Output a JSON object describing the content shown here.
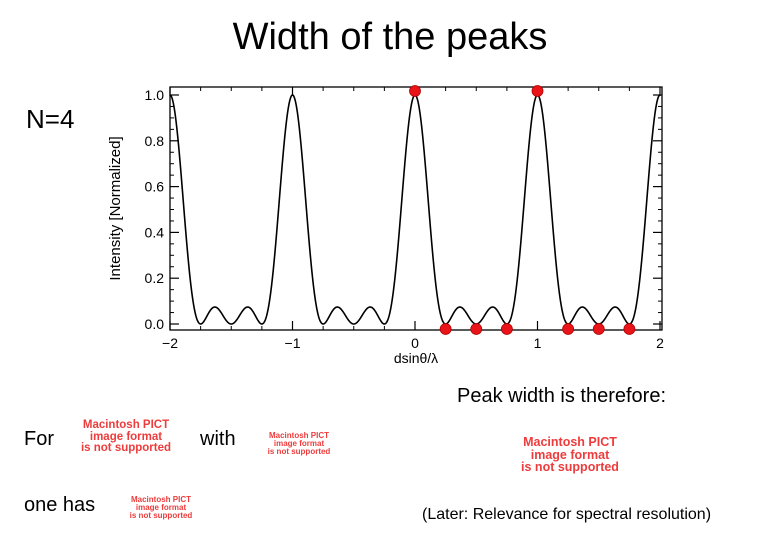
{
  "slide": {
    "title": "Width of the peaks",
    "n_label": "N=4",
    "peak_width_text": "Peak width is therefore:",
    "for_text": "For",
    "with_text": "with",
    "one_has_text": "one has",
    "later_text": "(Later: Relevance for spectral resolution)"
  },
  "pict_placeholder": {
    "line1": "Macintosh PICT",
    "line2": "image format",
    "line3": "is not supported",
    "color": "#ee3c3c"
  },
  "chart_data": {
    "type": "line",
    "title": "",
    "xlabel": "dsinθ/λ",
    "ylabel": "Intensity [Normalized]",
    "xlim": [
      -2,
      2
    ],
    "ylim": [
      0,
      1.0
    ],
    "x_ticks": [
      -2,
      -1,
      0,
      1,
      2
    ],
    "y_ticks": [
      0.0,
      0.2,
      0.4,
      0.6,
      0.8,
      1.0
    ],
    "x_tick_labels": [
      "−2",
      "−1",
      "0",
      "1",
      "2"
    ],
    "y_tick_labels": [
      "0.0",
      "0.2",
      "0.4",
      "0.6",
      "0.8",
      "1.0"
    ],
    "grid": false,
    "curve": "N-slit interference intensity, N = 4",
    "N": 4,
    "marked_points": [
      {
        "x": 0,
        "y": 1.0
      },
      {
        "x": 1,
        "y": 1.0
      },
      {
        "x": 0.25,
        "y": 0
      },
      {
        "x": 0.5,
        "y": 0
      },
      {
        "x": 0.75,
        "y": 0
      },
      {
        "x": 1.25,
        "y": 0
      },
      {
        "x": 1.5,
        "y": 0
      },
      {
        "x": 1.75,
        "y": 0
      }
    ],
    "line_color": "#000000",
    "marker_color": "#e8141a"
  }
}
